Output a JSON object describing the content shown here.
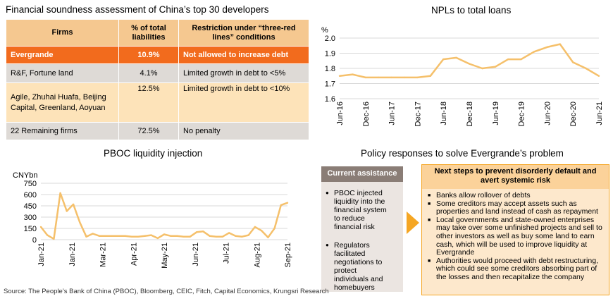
{
  "table_panel": {
    "title": "Financial soundness assessment of China’s top 30 developers",
    "headers": [
      "Firms",
      "% of total liabilities",
      "Restriction under “three-red lines” conditions"
    ],
    "rows": [
      {
        "firms": "Evergrande",
        "share": "10.9%",
        "restriction": "Not allowed to increase debt"
      },
      {
        "firms": "R&F, Fortune land",
        "share": "4.1%",
        "restriction": "Limited growth in debt to <5%"
      },
      {
        "firms": "Agile, Zhuhai Huafa, Beijing Capital, Greenland, Aoyuan",
        "share": "12.5%",
        "restriction": "Limited growth in debt to <10%"
      },
      {
        "firms": "22 Remaining firms",
        "share": "72.5%",
        "restriction": "No penalty"
      }
    ],
    "colors": {
      "header": "#f5c890",
      "highlight": "#f26b1d",
      "grey": "#dedad6",
      "tan": "#fde3b9"
    }
  },
  "chart_data": [
    {
      "type": "line",
      "title": "NPLs to total loans",
      "ylabel": "%",
      "ylim": [
        1.6,
        2.0
      ],
      "yticks": [
        "2.0",
        "1.9",
        "1.8",
        "1.7",
        "1.6"
      ],
      "tick_labels": [
        "Jun-16",
        "Dec-16",
        "Jun-17",
        "Dec-17",
        "Jun-18",
        "Dec-18",
        "Jun-19",
        "Dec-19",
        "Jun-20",
        "Dec-20",
        "Jun-21"
      ],
      "x": [
        "Jun-16",
        "Sep-16",
        "Dec-16",
        "Mar-17",
        "Jun-17",
        "Sep-17",
        "Dec-17",
        "Mar-18",
        "Jun-18",
        "Sep-18",
        "Dec-18",
        "Mar-19",
        "Jun-19",
        "Sep-19",
        "Dec-19",
        "Mar-20",
        "Jun-20",
        "Sep-20",
        "Dec-20",
        "Mar-21",
        "Jun-21"
      ],
      "values": [
        1.75,
        1.76,
        1.74,
        1.74,
        1.74,
        1.74,
        1.74,
        1.75,
        1.86,
        1.87,
        1.83,
        1.8,
        1.81,
        1.86,
        1.86,
        1.91,
        1.94,
        1.96,
        1.84,
        1.8,
        1.75
      ],
      "color": "#f5c06b",
      "grid": true
    },
    {
      "type": "line",
      "title": "PBOC liquidity injection",
      "ylabel": "CNYbn",
      "ylim": [
        0,
        750
      ],
      "yticks": [
        "750",
        "600",
        "450",
        "300",
        "150",
        "0"
      ],
      "tick_labels": [
        "Jan-21",
        "Jan-21",
        "Mar-21",
        "Apr-21",
        "May-21",
        "Jun-21",
        "Jul-21",
        "Aug-21",
        "Sep-21"
      ],
      "values": [
        170,
        60,
        10,
        620,
        380,
        470,
        230,
        40,
        80,
        50,
        50,
        50,
        50,
        50,
        40,
        40,
        50,
        60,
        20,
        70,
        50,
        50,
        40,
        40,
        100,
        110,
        50,
        40,
        40,
        90,
        50,
        40,
        60,
        170,
        120,
        30,
        150,
        460,
        490
      ],
      "color": "#f5c06b",
      "grid": true
    }
  ],
  "policy_panel": {
    "title": "Policy responses to solve Evergrande’s problem",
    "current": {
      "heading": "Current assistance",
      "items": [
        "PBOC injected liquidity into the financial system to reduce financial risk",
        "Regulators facilitated negotiations to protect individuals and homebuyers"
      ]
    },
    "next": {
      "heading": "Next steps to prevent disorderly default and avert systemic risk",
      "items": [
        "Banks allow rollover of debts",
        "Some creditors may accept assets such as properties and land instead of cash as repayment",
        "Local governments and state-owned enterprises may take over some unfinished projects and sell to other investors as well as buy some land to earn cash, which will be used to improve liquidity at Evergrande",
        "Authorities would proceed with debt restructuring, which could see some creditors absorbing part of the losses and then recapitalize the company"
      ]
    },
    "colors": {
      "current_head": "#8a7d76",
      "current_body": "#ebe5e1",
      "arrow": "#f5a623",
      "next_border": "#f5a623",
      "next_head": "#fbd29a",
      "next_body": "#fde8cc"
    }
  },
  "source": "Source: The People’s Bank of China (PBOC), Bloomberg, CEIC, Fitch, Capital Economics, Krungsri Research"
}
